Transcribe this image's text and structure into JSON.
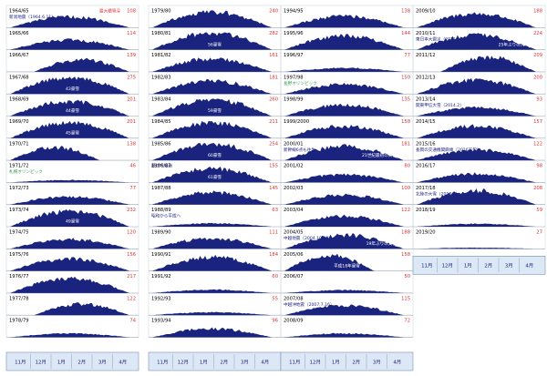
{
  "chart_data": {
    "type": "area",
    "x_axis_months": [
      "11月",
      "12月",
      "1月",
      "2月",
      "3月",
      "4月"
    ],
    "value_unit": "cm",
    "colors": {
      "area": "#1a237e",
      "value": "#e03030",
      "label": "#000000",
      "annotation_blue": "#1a237e",
      "annotation_green": "#2e9e4a",
      "axis_strip": "#dde8f6",
      "axis_line": "#7a8fb0"
    },
    "columns": [
      {
        "seasons": [
          {
            "label": "1964/65",
            "max": 108,
            "level": 0.62,
            "dist": "mid",
            "notes": [
              {
                "text": "最大積雪深",
                "tone": "red",
                "side": "right",
                "row": 0
              },
              {
                "text": "新潟地震（1964.6.11）",
                "tone": "blue",
                "side": "left",
                "row": 1
              }
            ]
          },
          {
            "label": "1965/66",
            "max": 114,
            "level": 0.55,
            "dist": "mid"
          },
          {
            "label": "1966/67",
            "max": 139,
            "level": 0.7,
            "dist": "late"
          },
          {
            "label": "1967/68",
            "max": 275,
            "level": 0.95,
            "dist": "mid",
            "notes": [
              {
                "text": "43豪雪",
                "tone": "blue",
                "side": "center",
                "row": 2
              }
            ]
          },
          {
            "label": "1968/69",
            "max": 201,
            "level": 0.85,
            "dist": "mid",
            "notes": [
              {
                "text": "44豪雪",
                "tone": "blue",
                "side": "center",
                "row": 2
              }
            ]
          },
          {
            "label": "1969/70",
            "max": 201,
            "level": 0.9,
            "dist": "mid",
            "notes": [
              {
                "text": "45豪雪",
                "tone": "blue",
                "side": "center",
                "row": 2
              }
            ]
          },
          {
            "label": "1970/71",
            "max": 138,
            "level": 0.75,
            "dist": "early"
          },
          {
            "label": "1971/72",
            "max": 46,
            "level": 0.25,
            "dist": "low",
            "notes": [
              {
                "text": "札幌オリンピック",
                "tone": "green",
                "side": "left",
                "row": 1
              }
            ]
          },
          {
            "label": "1972/73",
            "max": 77,
            "level": 0.45,
            "dist": "mid"
          },
          {
            "label": "1973/74",
            "max": 232,
            "level": 0.9,
            "dist": "mid",
            "notes": [
              {
                "text": "49豪雪",
                "tone": "blue",
                "side": "center",
                "row": 2
              }
            ]
          },
          {
            "label": "1974/75",
            "max": 120,
            "level": 0.55,
            "dist": "mid"
          },
          {
            "label": "1975/76",
            "max": 156,
            "level": 0.7,
            "dist": "mid"
          },
          {
            "label": "1976/77",
            "max": 217,
            "level": 0.85,
            "dist": "mid"
          },
          {
            "label": "1977/78",
            "max": 122,
            "level": 0.65,
            "dist": "late"
          },
          {
            "label": "1978/79",
            "max": 74,
            "level": 0.4,
            "dist": "low"
          }
        ]
      },
      {
        "seasons": [
          {
            "label": "1979/80",
            "max": 240,
            "level": 0.9,
            "dist": "mid"
          },
          {
            "label": "1980/81",
            "max": 282,
            "level": 0.98,
            "dist": "mid",
            "notes": [
              {
                "text": "56豪雪",
                "tone": "blue",
                "side": "center",
                "row": 2
              }
            ]
          },
          {
            "label": "1981/82",
            "max": 161,
            "level": 0.75,
            "dist": "mid"
          },
          {
            "label": "1982/83",
            "max": 181,
            "level": 0.75,
            "dist": "mid"
          },
          {
            "label": "1983/84",
            "max": 260,
            "level": 0.95,
            "dist": "mid",
            "notes": [
              {
                "text": "59豪雪",
                "tone": "blue",
                "side": "center",
                "row": 2
              }
            ]
          },
          {
            "label": "1984/85",
            "max": 211,
            "level": 0.9,
            "dist": "mid"
          },
          {
            "label": "1985/86",
            "max": 254,
            "level": 0.95,
            "dist": "mid",
            "notes": [
              {
                "text": "60豪雪",
                "tone": "blue",
                "side": "center",
                "row": 2
              }
            ]
          },
          {
            "label": "1986/87",
            "max": 155,
            "level": 0.8,
            "dist": "mid",
            "notes": [
              {
                "text": "藤口で雪崩",
                "tone": "blue",
                "side": "left",
                "row": 0
              },
              {
                "text": "61豪雪",
                "tone": "blue",
                "side": "center",
                "row": 2
              }
            ]
          },
          {
            "label": "1987/88",
            "max": 145,
            "level": 0.7,
            "dist": "mid"
          },
          {
            "label": "1988/89",
            "max": 63,
            "level": 0.35,
            "dist": "low",
            "notes": [
              {
                "text": "昭和から平成へ",
                "tone": "blue",
                "side": "left",
                "row": 1
              }
            ]
          },
          {
            "label": "1989/90",
            "max": 111,
            "level": 0.6,
            "dist": "mid"
          },
          {
            "label": "1990/91",
            "max": 184,
            "level": 0.8,
            "dist": "mid"
          },
          {
            "label": "1991/92",
            "max": 60,
            "level": 0.35,
            "dist": "low"
          },
          {
            "label": "1992/93",
            "max": 55,
            "level": 0.3,
            "dist": "low"
          },
          {
            "label": "1993/94",
            "max": 96,
            "level": 0.5,
            "dist": "mid"
          }
        ]
      },
      {
        "seasons": [
          {
            "label": "1994/95",
            "max": 138,
            "level": 0.65,
            "dist": "mid"
          },
          {
            "label": "1995/96",
            "max": 144,
            "level": 0.8,
            "dist": "mid"
          },
          {
            "label": "1996/97",
            "max": 77,
            "level": 0.4,
            "dist": "low"
          },
          {
            "label": "1997/98",
            "max": 150,
            "level": 0.55,
            "dist": "mid",
            "notes": [
              {
                "text": "長野オリンピック",
                "tone": "green",
                "side": "left",
                "row": 1
              }
            ]
          },
          {
            "label": "1998/99",
            "max": 135,
            "level": 0.65,
            "dist": "mid"
          },
          {
            "label": "1999/2000",
            "max": 158,
            "level": 0.7,
            "dist": "mid"
          },
          {
            "label": "2000/01",
            "max": 181,
            "level": 0.8,
            "dist": "mid",
            "notes": [
              {
                "text": "新幹線6点も往生",
                "tone": "blue",
                "side": "left",
                "row": 1
              },
              {
                "text": "21世紀最初の大雪",
                "tone": "blue",
                "side": "right",
                "row": 2
              }
            ]
          },
          {
            "label": "2001/02",
            "max": 80,
            "level": 0.45,
            "dist": "mid"
          },
          {
            "label": "2002/03",
            "max": 100,
            "level": 0.55,
            "dist": "mid"
          },
          {
            "label": "2003/04",
            "max": 122,
            "level": 0.6,
            "dist": "mid"
          },
          {
            "label": "2004/05",
            "max": 188,
            "level": 0.8,
            "dist": "mid",
            "notes": [
              {
                "text": "中越地震（2004.10.23）",
                "tone": "blue",
                "side": "left",
                "row": 1
              },
              {
                "text": "19年ぶりの大雪",
                "tone": "blue",
                "side": "right",
                "row": 2
              }
            ]
          },
          {
            "label": "2005/06",
            "max": 158,
            "level": 0.9,
            "dist": "early",
            "notes": [
              {
                "text": "平成18年豪雪",
                "tone": "blue",
                "side": "center",
                "row": 2
              }
            ]
          },
          {
            "label": "2006/07",
            "max": 50,
            "level": 0.3,
            "dist": "low"
          },
          {
            "label": "2007/08",
            "max": 115,
            "level": 0.55,
            "dist": "mid",
            "notes": [
              {
                "text": "中越沖地震（2007.7.16）",
                "tone": "blue",
                "side": "left",
                "row": 1
              }
            ]
          },
          {
            "label": "2008/09",
            "max": 72,
            "level": 0.4,
            "dist": "low"
          }
        ]
      },
      {
        "seasons": [
          {
            "label": "2009/10",
            "max": 188,
            "level": 0.8,
            "dist": "mid"
          },
          {
            "label": "2010/11",
            "max": 224,
            "level": 0.85,
            "dist": "mid",
            "notes": [
              {
                "text": "東日本大震災（2011.3.11）",
                "tone": "blue",
                "side": "left",
                "row": 1
              },
              {
                "text": "25年ぶりの大雪",
                "tone": "blue",
                "side": "right",
                "row": 2
              }
            ]
          },
          {
            "label": "2011/12",
            "max": 209,
            "level": 0.85,
            "dist": "late"
          },
          {
            "label": "2012/13",
            "max": 200,
            "level": 0.8,
            "dist": "mid"
          },
          {
            "label": "2013/14",
            "max": 93,
            "level": 0.5,
            "dist": "mid",
            "notes": [
              {
                "text": "関東甲信大雪（2014.2）",
                "tone": "blue",
                "side": "left",
                "row": 1
              }
            ]
          },
          {
            "label": "2014/15",
            "max": 157,
            "level": 0.7,
            "dist": "mid"
          },
          {
            "label": "2015/16",
            "max": 122,
            "level": 0.6,
            "dist": "mid",
            "notes": [
              {
                "text": "長岡の交通機関麻痺（2016下旬）",
                "tone": "blue",
                "side": "left",
                "row": 1
              }
            ]
          },
          {
            "label": "2016/17",
            "max": 98,
            "level": 0.5,
            "dist": "mid"
          },
          {
            "label": "2017/18",
            "max": 208,
            "level": 0.8,
            "dist": "mid",
            "notes": [
              {
                "text": "北陸の大雪（2018.2）",
                "tone": "blue",
                "side": "left",
                "row": 1
              }
            ]
          },
          {
            "label": "2018/19",
            "max": 59,
            "level": 0.3,
            "dist": "low"
          },
          {
            "label": "2019/20",
            "max": 27,
            "level": 0.12,
            "dist": "low"
          }
        ]
      }
    ]
  }
}
